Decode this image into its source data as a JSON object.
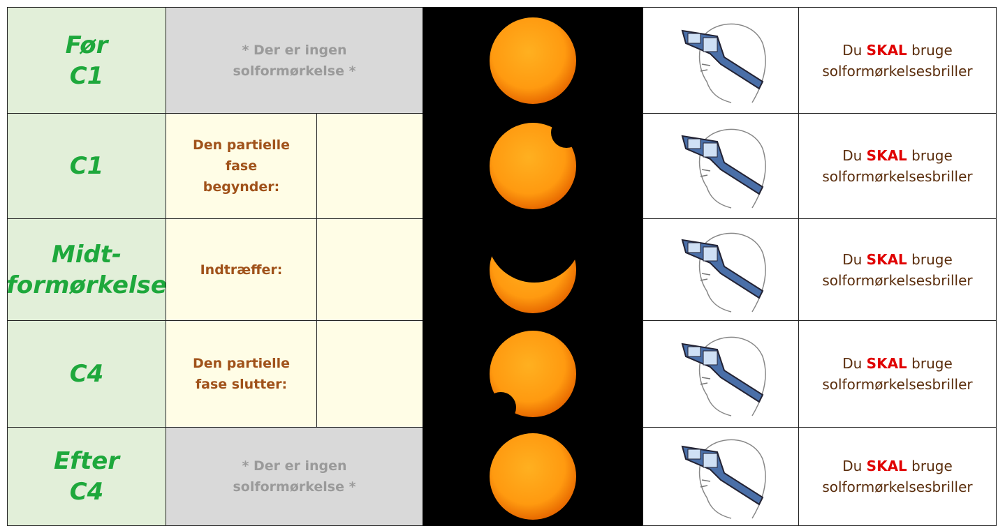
{
  "rows": [
    {
      "phase": [
        "Før",
        "C1"
      ],
      "note": [
        "* Der er ingen",
        "solformørkelse *"
      ],
      "instruction": {
        "before": "Du",
        "emphasis": "SKAL",
        "after": "bruge",
        "line2": "solformørkelsesbriller"
      }
    },
    {
      "phase": [
        "C1"
      ],
      "description": [
        "Den partielle",
        "fase",
        "begynder:"
      ],
      "instruction": {
        "before": "Du",
        "emphasis": "SKAL",
        "after": "bruge",
        "line2": "solformørkelsesbriller"
      }
    },
    {
      "phase": [
        "Midt-",
        "formørkelse"
      ],
      "description": [
        "Indtræffer:"
      ],
      "instruction": {
        "before": "Du",
        "emphasis": "SKAL",
        "after": "bruge",
        "line2": "solformørkelsesbriller"
      }
    },
    {
      "phase": [
        "C4"
      ],
      "description": [
        "Den partielle",
        "fase slutter:"
      ],
      "instruction": {
        "before": "Du",
        "emphasis": "SKAL",
        "after": "bruge",
        "line2": "solformørkelsesbriller"
      }
    },
    {
      "phase": [
        "Efter",
        "C4"
      ],
      "note": [
        "* Der er ingen",
        "solformørkelse *"
      ],
      "instruction": {
        "before": "Du",
        "emphasis": "SKAL",
        "after": "bruge",
        "line2": "solformørkelsesbriller"
      }
    }
  ]
}
